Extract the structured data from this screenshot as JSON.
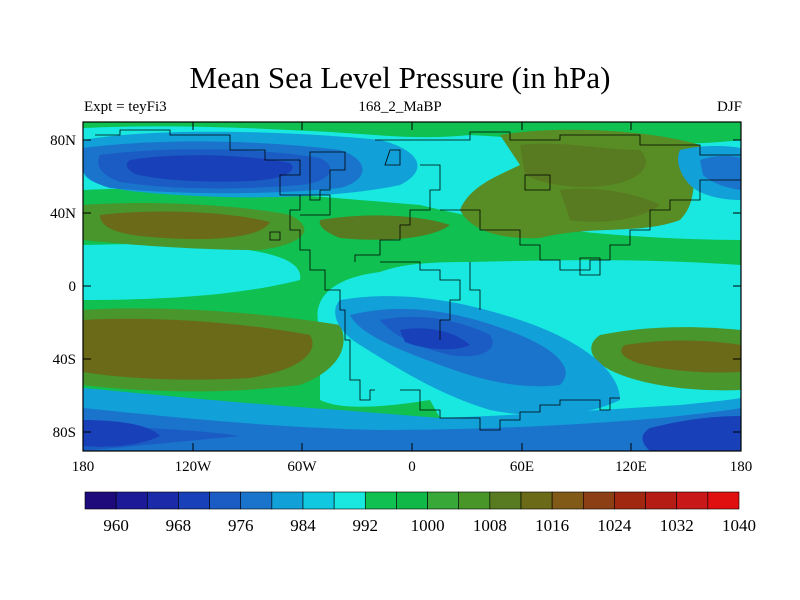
{
  "title": "Mean Sea Level Pressure (in hPa)",
  "subtitle_left": "Expt = teyFi3",
  "subtitle_center": "168_2_MaBP",
  "subtitle_right": "DJF",
  "lat_ticks": [
    "80N",
    "40N",
    "0",
    "40S",
    "80S"
  ],
  "lon_ticks": [
    "180",
    "120W",
    "60W",
    "0",
    "60E",
    "120E",
    "180"
  ],
  "colorbar": {
    "colors": [
      "#1e0a7a",
      "#1c1a96",
      "#1a2aa8",
      "#1840b8",
      "#1a5cc4",
      "#1a74cc",
      "#12a0d8",
      "#10c8e0",
      "#18e8e0",
      "#10c050",
      "#10b848",
      "#38a838",
      "#489628",
      "#587a20",
      "#6a6a18",
      "#825a18",
      "#8c3e14",
      "#a02810",
      "#b41c14",
      "#c81818",
      "#e01010"
    ],
    "labels": [
      "960",
      "968",
      "976",
      "984",
      "992",
      "1000",
      "1008",
      "1016",
      "1024",
      "1032",
      "1040"
    ]
  }
}
